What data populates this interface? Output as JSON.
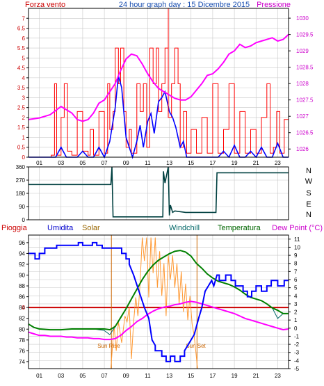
{
  "header": {
    "left_title": "Forza vento",
    "center_title": "24 hour graph day : 15 Dicembre 2015",
    "right_title": "Pressione"
  },
  "wind_direction_labels": [
    "N",
    "W",
    "S",
    "E",
    "N"
  ],
  "bottom_header": {
    "rain": "Pioggia",
    "humidity": "Umidita",
    "solar": "Solar",
    "windchill": "Windchill",
    "temperature": "Temperatura",
    "dewpoint": "Dew Point (°C)"
  },
  "annotations": {
    "sun_rise": "Sun Rise",
    "sun_set": "Sun Set"
  },
  "colors": {
    "wind": "#ff0000",
    "gust_peak": "#ff0000",
    "avg_wind": "#0000ff",
    "pressure": "#ff00ff",
    "direction": "#004040",
    "rain": "#cc0000",
    "humidity": "#0000ff",
    "solar": "#ff9933",
    "windchill": "#006666",
    "temperature": "#008000",
    "dewpoint": "#ff00ff",
    "frame": "#000000",
    "grid": "#c8c8c8",
    "sun_marker": "#cc6600"
  },
  "chart_data": [
    {
      "type": "line",
      "title": "24 hour graph day : 15 Dicembre 2015",
      "ylabel": "Forza vento",
      "y2label": "Pressione",
      "x_ticks": [
        "01",
        "03",
        "05",
        "07",
        "09",
        "11",
        "13",
        "15",
        "17",
        "19",
        "21",
        "23"
      ],
      "xlim": [
        0,
        24
      ],
      "ylim": [
        0,
        7.5
      ],
      "y_ticks": [
        "0",
        "0.5",
        "1",
        "1.5",
        "2",
        "2.5",
        "3",
        "3.5",
        "4",
        "4.5",
        "5",
        "5.5",
        "6",
        "6.5",
        "7"
      ],
      "y2lim": [
        1025.75,
        1030.3
      ],
      "y2_ticks": [
        "1026",
        "1026.5",
        "1027",
        "1027.5",
        "1028",
        "1028.5",
        "1029",
        "1029.5",
        "1030"
      ],
      "series": [
        {
          "x": [
            0,
            1.6,
            2.1,
            2.4,
            2.6,
            3.0,
            3.3,
            3.6,
            4.0,
            4.5,
            5.0,
            5.5,
            5.7,
            6.0,
            6.5,
            7.0,
            7.3,
            7.5,
            7.8,
            8.0,
            8.3,
            8.5,
            8.8,
            9.0,
            9.3,
            9.5,
            10.0,
            10.3,
            10.6,
            10.9,
            11.2,
            11.5,
            11.8,
            12.0,
            12.3,
            12.6,
            12.9,
            13.2,
            13.5,
            13.8,
            14.0,
            14.3,
            14.6,
            15.0,
            15.5,
            16.0,
            16.5,
            17.0,
            17.5,
            18.0,
            18.5,
            19.0,
            19.5,
            20.0,
            20.5,
            21.0,
            21.5,
            22.0,
            22.3,
            22.6,
            22.9,
            23.2,
            23.6,
            24.0
          ],
          "values": [
            0,
            0,
            0.1,
            3.7,
            0.1,
            2.0,
            3.7,
            0.3,
            0.1,
            2.3,
            0.3,
            0.1,
            1.4,
            0.1,
            2.3,
            0.2,
            3.7,
            1.4,
            2.3,
            5.5,
            3.7,
            5.5,
            2.3,
            0.5,
            1.4,
            0.2,
            3.7,
            2.3,
            3.7,
            0.5,
            5.5,
            3.7,
            5.5,
            2.3,
            3.7,
            5.5,
            2.0,
            3.7,
            5.5,
            3.7,
            0.5,
            2.3,
            0.2,
            1.4,
            0.2,
            2.0,
            0.2,
            3.7,
            0.2,
            1.4,
            3.7,
            0.2,
            2.3,
            0.2,
            1.4,
            0.2,
            2.0,
            3.7,
            0.2,
            0.5,
            2.3,
            0.2,
            1.9,
            0
          ]
        },
        {
          "x": [
            0,
            1,
            2,
            2.5,
            3,
            3.5,
            4,
            4.5,
            5,
            5.5,
            6,
            6.5,
            7,
            7.5,
            8,
            8.3,
            8.6,
            9,
            9.3,
            9.6,
            10,
            10.3,
            10.6,
            11,
            11.3,
            11.6,
            12,
            12.3,
            12.6,
            13,
            13.3,
            13.6,
            14,
            14.3,
            14.6,
            15,
            15.5,
            16,
            16.5,
            17,
            17.5,
            18,
            18.5,
            19,
            19.5,
            20,
            20.5,
            21,
            21.5,
            22,
            22.5,
            23,
            23.5,
            24
          ],
          "values": [
            0,
            0,
            0,
            0,
            0.5,
            0,
            0,
            0,
            0.3,
            0,
            0,
            0.5,
            0,
            0.8,
            2.5,
            4.1,
            3.5,
            1.0,
            0.5,
            0,
            0.8,
            1.6,
            0.5,
            1.8,
            2.2,
            1.2,
            2.8,
            3.0,
            3.3,
            2.3,
            2.0,
            1.5,
            0.5,
            0.8,
            0,
            0,
            0,
            0,
            0,
            0,
            0,
            0.3,
            0,
            0.6,
            0,
            0,
            0.3,
            0,
            0.5,
            0,
            0,
            0.7,
            0,
            0
          ]
        },
        {
          "axis": "right",
          "x": [
            0,
            1,
            2,
            3,
            4,
            4.5,
            5,
            5.5,
            6,
            6.5,
            7,
            7.5,
            8,
            8.5,
            9,
            9.5,
            10,
            10.5,
            11,
            11.5,
            12,
            12.5,
            13,
            13.5,
            14,
            14.5,
            15,
            15.5,
            16,
            16.5,
            17,
            17.5,
            18,
            18.5,
            19,
            19.5,
            20,
            20.5,
            21,
            21.5,
            22,
            22.5,
            23,
            23.5,
            24
          ],
          "values": [
            1026.9,
            1026.95,
            1027.05,
            1027.3,
            1027.1,
            1026.9,
            1026.85,
            1026.9,
            1027.1,
            1027.4,
            1027.5,
            1027.75,
            1028.0,
            1028.4,
            1028.75,
            1028.9,
            1028.85,
            1028.6,
            1028.3,
            1028.05,
            1027.85,
            1027.75,
            1027.65,
            1027.55,
            1027.5,
            1027.5,
            1027.6,
            1027.8,
            1028.0,
            1028.25,
            1028.3,
            1028.45,
            1028.65,
            1028.9,
            1029.0,
            1029.2,
            1029.1,
            1029.15,
            1029.25,
            1029.3,
            1029.35,
            1029.4,
            1029.3,
            1029.35,
            1029.5
          ]
        }
      ]
    },
    {
      "type": "line",
      "xlim": [
        0,
        24
      ],
      "ylim": [
        0,
        360
      ],
      "y_ticks": [
        "0",
        "90",
        "180",
        "270",
        "360"
      ],
      "series": [
        {
          "x": [
            0,
            7.6,
            7.7,
            7.8,
            12.4,
            12.45,
            12.6,
            12.9,
            13.0,
            13.1,
            13.3,
            13.5,
            14.5,
            15.5,
            16.5,
            17.3,
            17.4,
            17.5,
            24
          ],
          "values": [
            240,
            240,
            360,
            20,
            20,
            330,
            250,
            360,
            30,
            100,
            50,
            60,
            50,
            50,
            50,
            50,
            320,
            320,
            320
          ]
        }
      ]
    },
    {
      "type": "line",
      "xlim": [
        0,
        24
      ],
      "ylim": [
        72.7,
        97.4
      ],
      "y_ticks": [
        "74",
        "76",
        "78",
        "80",
        "82",
        "84",
        "86",
        "88",
        "90",
        "92",
        "94",
        "96"
      ],
      "y2lim": [
        -5,
        11.5
      ],
      "y2_ticks": [
        "-5",
        "-4",
        "-3",
        "-2",
        "-1",
        "0",
        "1",
        "2",
        "3",
        "4",
        "5",
        "6",
        "7",
        "8",
        "9",
        "10",
        "11"
      ],
      "rain_reference": 84,
      "sun_rise": 7.65,
      "sun_set": 15.55,
      "series": [
        {
          "x": [
            0,
            0.6,
            0.6,
            1.0,
            1.0,
            1.5,
            1.5,
            2.6,
            2.6,
            4.6,
            4.6,
            5.0,
            5.0,
            5.9,
            5.9,
            6.3,
            6.3,
            6.8,
            6.8,
            7.6,
            7.6,
            8.6,
            8.6,
            9.0,
            9.0,
            9.3,
            9.3,
            9.7,
            10.2,
            10.7,
            11.1,
            11.4,
            11.7,
            11.7,
            12.3,
            12.3,
            12.7,
            12.7,
            13.1,
            13.1,
            13.5,
            13.5,
            14.0,
            14.0,
            14.4,
            14.4,
            15.3,
            15.7,
            16.0,
            16.3,
            16.6,
            16.9,
            17.1,
            17.4,
            17.6,
            17.6,
            18.2,
            18.2,
            18.7,
            18.7,
            19.1,
            19.1,
            19.8,
            19.8,
            20.2,
            20.2,
            20.6,
            20.6,
            21.0,
            21.0,
            21.5,
            21.5,
            22.0,
            22.0,
            22.4,
            22.4,
            23.0,
            23.0,
            23.6,
            23.6,
            24.0
          ],
          "values": [
            94,
            94,
            93,
            93,
            94,
            94,
            95,
            95,
            95.5,
            95.5,
            96,
            96,
            95.5,
            95.5,
            96,
            96,
            95.5,
            95.5,
            95,
            95,
            95,
            95,
            94,
            94,
            93,
            93,
            92,
            90,
            87,
            84,
            82,
            78,
            77,
            76,
            76,
            75,
            75,
            74,
            74,
            75,
            75,
            74,
            74,
            75,
            75,
            76,
            79,
            82,
            84,
            87,
            88,
            89,
            88,
            90,
            90,
            89,
            89,
            90,
            90,
            89,
            89,
            88,
            88,
            87,
            87,
            86,
            86,
            87,
            87,
            88,
            88,
            87,
            87,
            88,
            88,
            89,
            89,
            88,
            88,
            89,
            89
          ]
        },
        {
          "x": [
            0,
            7.6,
            7.9,
            8.1,
            8.3,
            8.6,
            8.9,
            9.1,
            9.3,
            9.5,
            9.7,
            9.9,
            10.1,
            10.3,
            10.5,
            10.7,
            10.9,
            11.1,
            11.3,
            11.5,
            11.7,
            11.9,
            12.1,
            12.3,
            12.5,
            12.7,
            12.9,
            13.1,
            13.3,
            13.5,
            13.7,
            13.9,
            14.1,
            14.3,
            14.5,
            14.7,
            14.9,
            15.1,
            15.3,
            15.6,
            24
          ],
          "values": [
            -5,
            -5,
            0.3,
            -2.8,
            0.8,
            -1.8,
            1.5,
            0.8,
            2.6,
            -3.8,
            0.8,
            3.8,
            1.5,
            5.6,
            11.2,
            8.3,
            11.2,
            3.8,
            11.2,
            6.8,
            11.2,
            5.0,
            9.5,
            4.0,
            8.0,
            1.5,
            9.0,
            6.0,
            9.0,
            5.0,
            8.0,
            3.0,
            7.0,
            2.0,
            5.5,
            1.0,
            4.0,
            0.5,
            -1.0,
            -5,
            -5
          ]
        },
        {
          "x": [
            0,
            0.5,
            1,
            2,
            3,
            4,
            5,
            6,
            7,
            7.5,
            8,
            8.5,
            9,
            9.5,
            10,
            10.5,
            11,
            11.5,
            12,
            12.5,
            13,
            13.5,
            14,
            14.5,
            15,
            15.5,
            16,
            16.5,
            17,
            17.5,
            18,
            18.5,
            19,
            19.5,
            20,
            20.5,
            21,
            21.5,
            22,
            22.5,
            23,
            23.5,
            24
          ],
          "values": [
            0.5,
            0.1,
            -0.1,
            -0.2,
            -0.2,
            -0.1,
            -0.1,
            -0.1,
            -0.1,
            -0.2,
            0.2,
            1.3,
            2.4,
            3.6,
            4.8,
            6.0,
            7.0,
            7.8,
            8.4,
            8.8,
            9.2,
            9.5,
            9.6,
            9.4,
            8.9,
            8.0,
            7.4,
            6.7,
            6.2,
            5.8,
            5.6,
            5.4,
            5.1,
            4.7,
            4.2,
            3.8,
            3.6,
            3.4,
            3.0,
            2.5,
            2.2,
            1.8,
            1.8
          ]
        },
        {
          "x": [
            0,
            0.5,
            1,
            2,
            3,
            4,
            5,
            6,
            7,
            7.5,
            8,
            8.5,
            9,
            9.5,
            10,
            10.5,
            11,
            11.5,
            12,
            12.5,
            13,
            13.5,
            14,
            14.5,
            15,
            15.5,
            16,
            16.5,
            17,
            17.5,
            18,
            18.5,
            19,
            19.5,
            20,
            20.5,
            21,
            21.5,
            22,
            22.5,
            23,
            23.5,
            24
          ],
          "values": [
            0.5,
            0.1,
            -0.1,
            -0.2,
            -0.2,
            -0.1,
            -0.1,
            -0.1,
            -0.3,
            -0.8,
            0.2,
            1.3,
            2.4,
            3.6,
            4.8,
            6.0,
            7.0,
            7.8,
            8.4,
            8.8,
            9.2,
            9.5,
            9.6,
            9.4,
            8.9,
            8.0,
            7.4,
            6.7,
            6.2,
            5.8,
            5.6,
            5.4,
            5.1,
            4.7,
            4.2,
            3.8,
            3.6,
            3.4,
            3.0,
            2.5,
            1.2,
            1.8,
            1.8
          ]
        },
        {
          "x": [
            0,
            0.5,
            1,
            1.5,
            2,
            2.5,
            3,
            3.5,
            4,
            4.5,
            5,
            5.5,
            6,
            6.5,
            7,
            7.5,
            8,
            8.5,
            9,
            9.5,
            10,
            10.5,
            11,
            11.5,
            12,
            12.5,
            13,
            13.5,
            14,
            14.5,
            15,
            15.5,
            16,
            16.5,
            17,
            17.5,
            18,
            18.5,
            19,
            19.5,
            20,
            20.5,
            21,
            21.5,
            22,
            22.5,
            23,
            23.5,
            24
          ],
          "values": [
            -0.5,
            -0.7,
            -0.9,
            -0.9,
            -1.0,
            -1.0,
            -1.0,
            -1.1,
            -1.1,
            -1.2,
            -1.2,
            -1.2,
            -1.3,
            -1.3,
            -1.4,
            -1.4,
            -1.3,
            -0.9,
            -0.3,
            0.2,
            0.8,
            1.2,
            1.7,
            2.1,
            2.4,
            2.6,
            2.7,
            2.9,
            3.0,
            3.2,
            3.3,
            3.2,
            3.0,
            2.8,
            2.6,
            2.4,
            2.2,
            2.0,
            1.8,
            1.5,
            1.2,
            1.0,
            0.8,
            0.6,
            0.4,
            0.2,
            0.0,
            -0.2,
            -0.1
          ]
        }
      ]
    }
  ]
}
